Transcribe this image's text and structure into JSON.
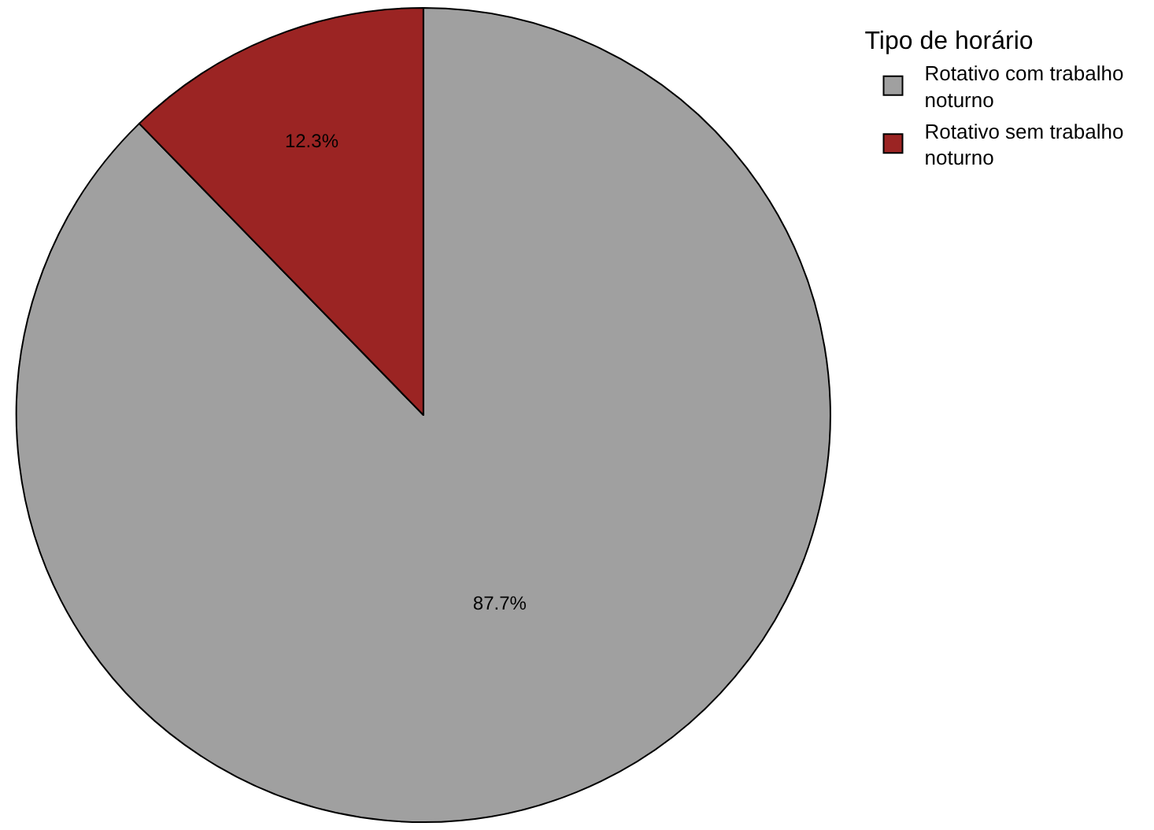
{
  "chart_data": {
    "type": "pie",
    "legend_title": "Tipo de horário",
    "categories": [
      "Rotativo com trabalho noturno",
      "Rotativo sem trabalho noturno"
    ],
    "values": [
      87.7,
      12.3
    ],
    "colors": [
      "#a0a0a0",
      "#9b2423"
    ],
    "value_labels": [
      "87.7%",
      "12.3%"
    ],
    "legend": "top right"
  }
}
